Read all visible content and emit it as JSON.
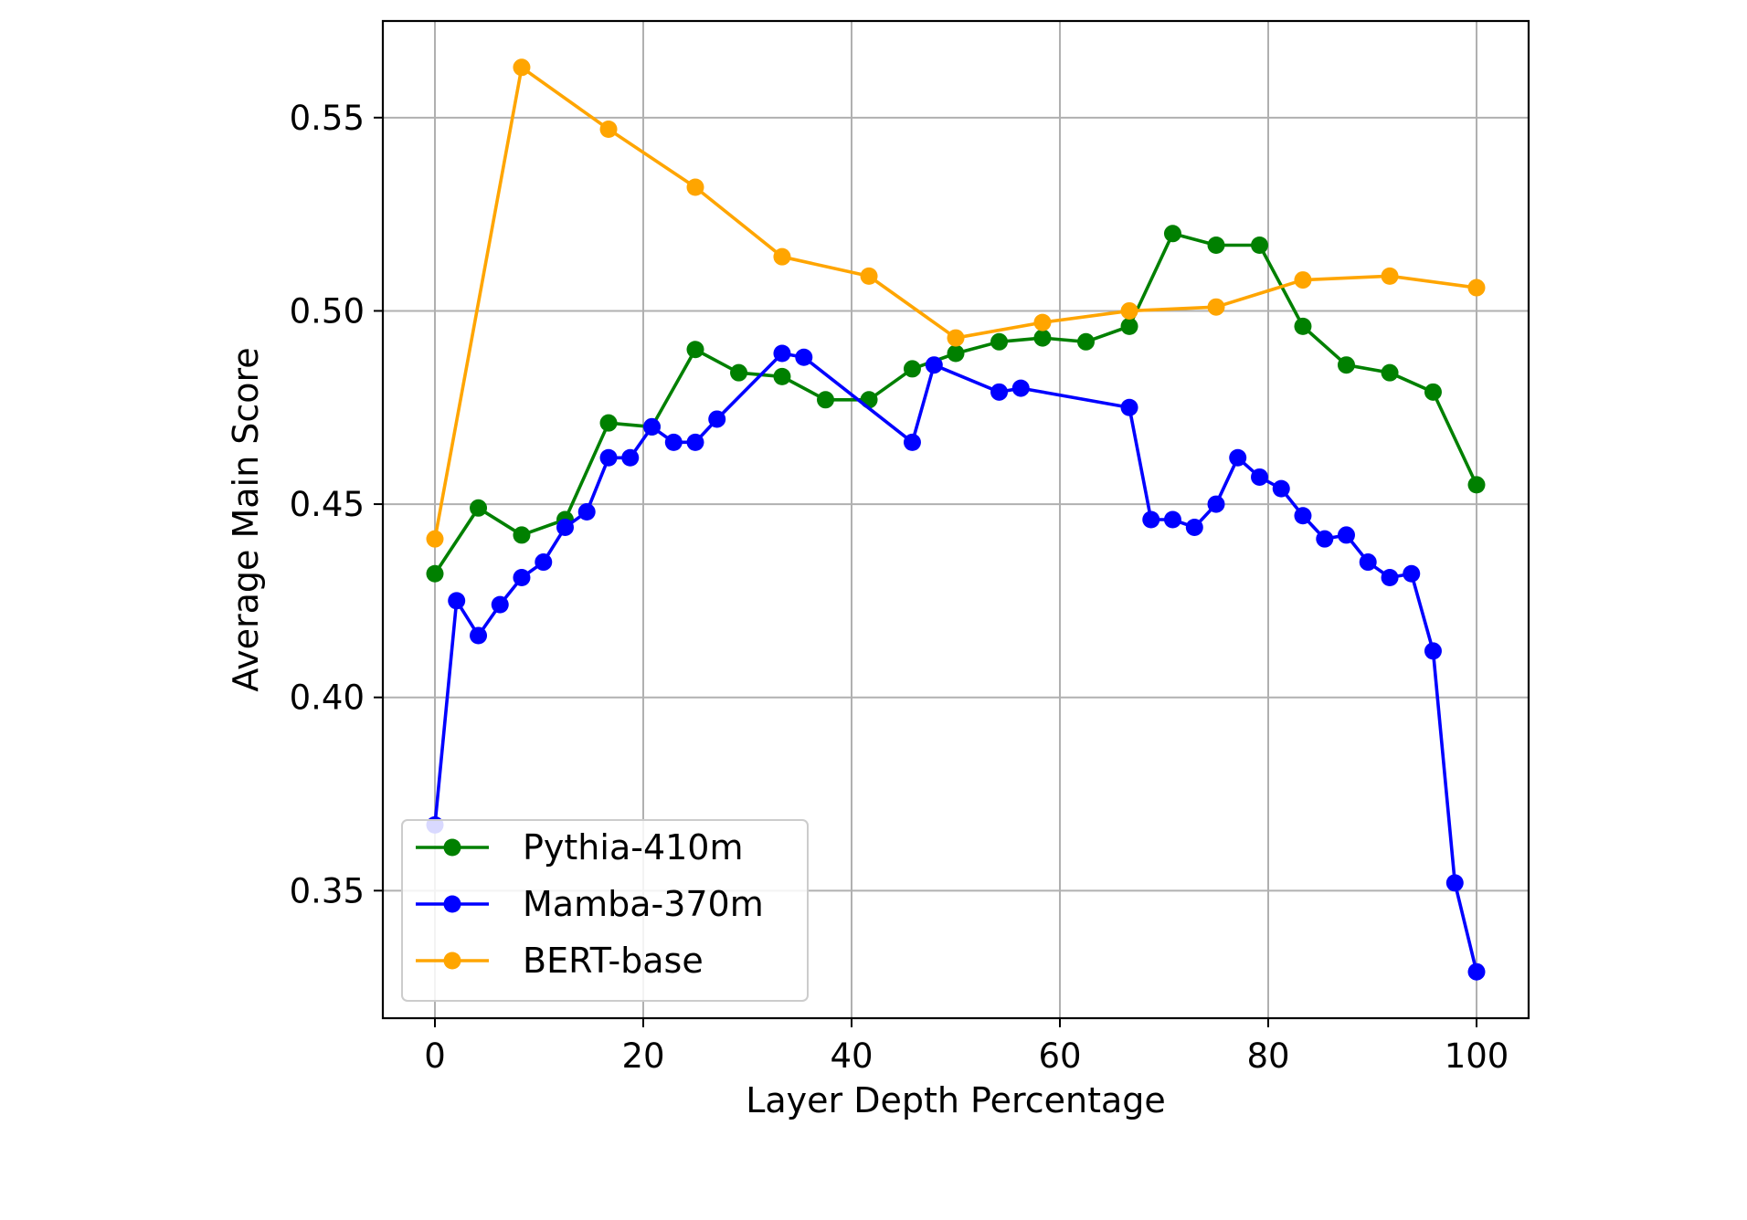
{
  "chart_data": {
    "type": "line",
    "title": "",
    "xlabel": "Layer Depth Percentage",
    "ylabel": "Average Main Score",
    "xlim": [
      -5,
      105
    ],
    "ylim": [
      0.317,
      0.575
    ],
    "xticks": [
      0,
      20,
      40,
      60,
      80,
      100
    ],
    "xtick_labels": [
      "0",
      "20",
      "40",
      "60",
      "80",
      "100"
    ],
    "yticks": [
      0.35,
      0.4,
      0.45,
      0.5,
      0.55
    ],
    "ytick_labels": [
      "0.35",
      "0.40",
      "0.45",
      "0.50",
      "0.55"
    ],
    "grid": true,
    "legend_position": "lower-left",
    "series": [
      {
        "name": "Pythia-410m",
        "color": "#008000",
        "x": [
          0,
          4.17,
          8.33,
          12.5,
          16.67,
          20.83,
          25,
          29.17,
          33.33,
          37.5,
          41.67,
          45.83,
          50,
          54.17,
          58.33,
          62.5,
          66.67,
          70.83,
          75,
          79.17,
          83.33,
          87.5,
          91.67,
          95.83,
          100
        ],
        "y": [
          0.432,
          0.449,
          0.442,
          0.446,
          0.471,
          0.47,
          0.49,
          0.484,
          0.483,
          0.477,
          0.477,
          0.485,
          0.489,
          0.492,
          0.493,
          0.492,
          0.496,
          0.52,
          0.517,
          0.517,
          0.496,
          0.486,
          0.484,
          0.479,
          0.455
        ]
      },
      {
        "name": "Mamba-370m",
        "color": "#0000ff",
        "x": [
          0,
          2.08,
          4.17,
          6.25,
          8.33,
          10.42,
          12.5,
          14.58,
          16.67,
          18.75,
          20.83,
          22.92,
          25,
          27.08,
          33.33,
          35.42,
          45.83,
          47.92,
          54.17,
          56.25,
          66.67,
          68.75,
          70.83,
          72.92,
          75,
          77.08,
          79.17,
          81.25,
          83.33,
          85.42,
          87.5,
          89.58,
          91.67,
          93.75,
          95.83,
          97.92,
          100
        ],
        "y": [
          0.367,
          0.425,
          0.416,
          0.424,
          0.431,
          0.435,
          0.444,
          0.448,
          0.462,
          0.462,
          0.47,
          0.466,
          0.466,
          0.472,
          0.489,
          0.488,
          0.466,
          0.486,
          0.479,
          0.48,
          0.475,
          0.446,
          0.446,
          0.444,
          0.45,
          0.462,
          0.457,
          0.454,
          0.447,
          0.441,
          0.442,
          0.435,
          0.431,
          0.432,
          0.412,
          0.352,
          0.329
        ]
      },
      {
        "name": "BERT-base",
        "color": "#ffa500",
        "x": [
          0,
          8.33,
          16.67,
          25,
          33.33,
          41.67,
          50,
          58.33,
          66.67,
          75,
          83.33,
          91.67,
          100
        ],
        "y": [
          0.441,
          0.563,
          0.547,
          0.532,
          0.514,
          0.509,
          0.493,
          0.497,
          0.5,
          0.501,
          0.508,
          0.509,
          0.506
        ]
      }
    ]
  }
}
